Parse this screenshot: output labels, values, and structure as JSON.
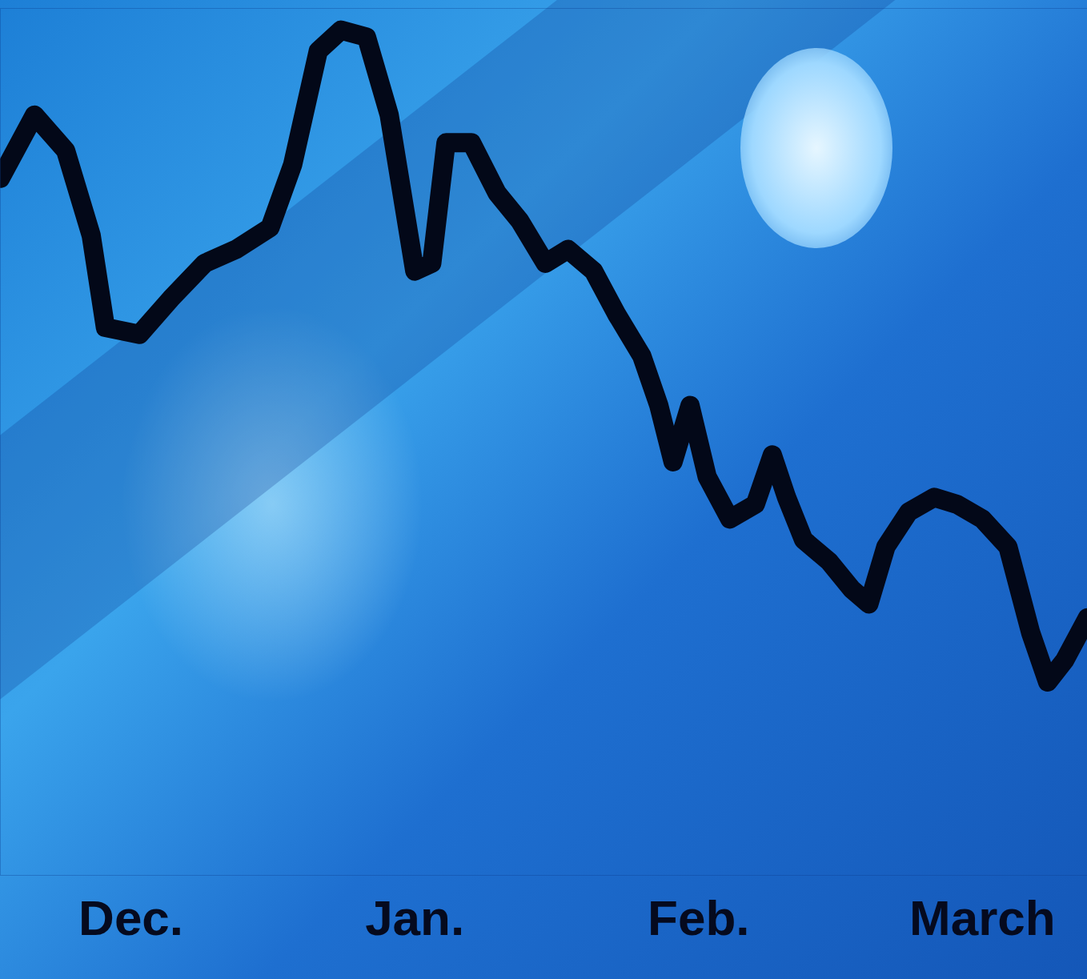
{
  "chart_data": {
    "type": "line",
    "x": [
      -0.46,
      -0.34,
      -0.23,
      -0.14,
      -0.09,
      0.03,
      0.14,
      0.26,
      0.37,
      0.49,
      0.57,
      0.66,
      0.74,
      0.83,
      0.91,
      1.0,
      1.06,
      1.11,
      1.2,
      1.29,
      1.37,
      1.46,
      1.54,
      1.63,
      1.71,
      1.8,
      1.86,
      1.91,
      1.97,
      2.03,
      2.11,
      2.2,
      2.26,
      2.31,
      2.37,
      2.46,
      2.54,
      2.6,
      2.66,
      2.74,
      2.83,
      2.91,
      3.0,
      3.09,
      3.17,
      3.23,
      3.29,
      3.37
    ],
    "values": [
      80.4,
      87.7,
      83.6,
      73.8,
      63.2,
      62.4,
      66.5,
      70.6,
      72.2,
      74.7,
      82.0,
      95.1,
      97.5,
      96.7,
      87.7,
      69.7,
      70.6,
      84.5,
      84.5,
      78.7,
      75.5,
      70.6,
      72.2,
      69.7,
      64.8,
      59.9,
      54.2,
      47.7,
      54.2,
      46.0,
      41.1,
      42.8,
      48.5,
      43.6,
      38.7,
      36.2,
      33.0,
      31.3,
      37.9,
      41.9,
      43.6,
      42.8,
      41.1,
      37.9,
      28.0,
      22.3,
      24.8,
      29.7
    ],
    "color": "#030818",
    "xlim": [
      -0.46,
      3.37
    ],
    "xticks": [
      {
        "value": 0,
        "label": "Dec."
      },
      {
        "value": 1,
        "label": "Jan."
      },
      {
        "value": 2,
        "label": "Feb."
      },
      {
        "value": 3,
        "label": "March"
      }
    ],
    "ylim": [
      0,
      100
    ],
    "yticks": [],
    "tick_labels": "x",
    "grid": false
  }
}
